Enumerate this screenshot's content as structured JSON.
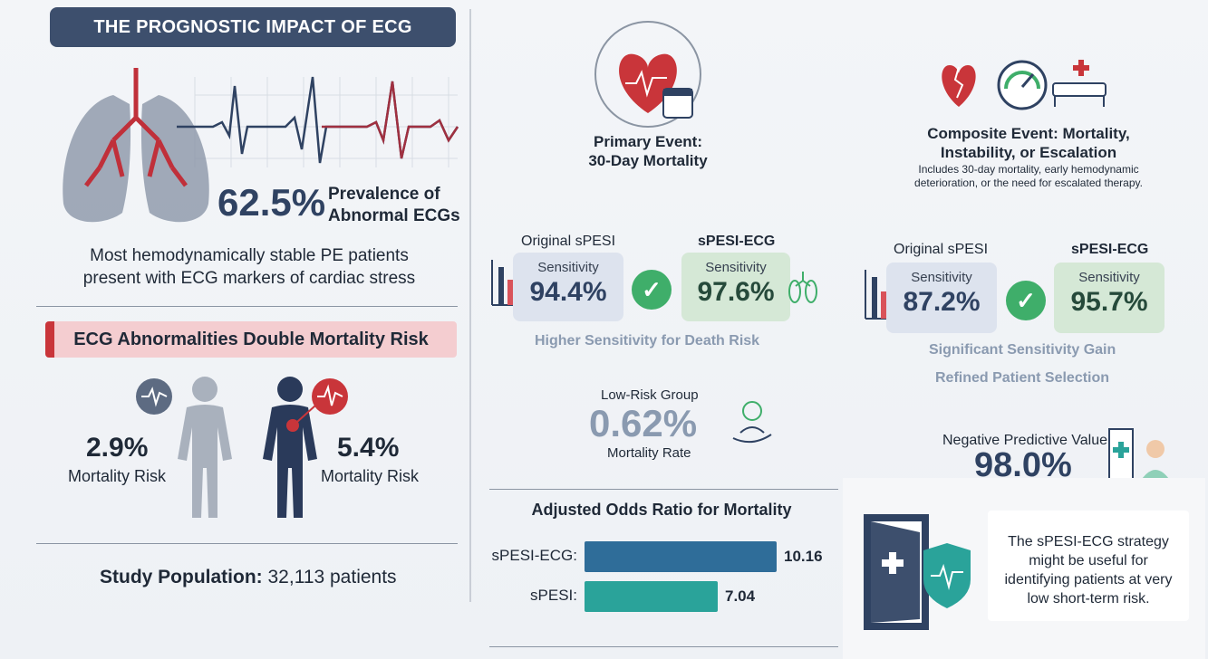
{
  "title": "THE PROGNOSTIC IMPACT OF ECG",
  "prevalence": {
    "value": "62.5%",
    "label_line1": "Prevalence of",
    "label_line2": "Abnormal ECGs"
  },
  "prevalence_note_line1": "Most hemodynamically stable PE patients",
  "prevalence_note_line2": "present with ECG markers of cardiac stress",
  "mortality_banner": "ECG Abnormalities Double Mortality Risk",
  "normal_risk": {
    "value": "2.9%",
    "label": "Mortality Risk"
  },
  "abnormal_risk": {
    "value": "5.4%",
    "label": "Mortality Risk"
  },
  "study_population": {
    "label": "Study Population:",
    "value": "32,113 patients"
  },
  "primary_event": {
    "title_line1": "Primary Event:",
    "title_line2": "30-Day Mortality",
    "original_label": "Original sPESI",
    "new_label": "sPESI-ECG",
    "original_sens_label": "Sensitivity",
    "original_sens_value": "94.4%",
    "new_sens_label": "Sensitivity",
    "new_sens_value": "97.6%",
    "caption": "Higher Sensitivity for Death Risk"
  },
  "low_risk": {
    "title": "Low-Risk Group",
    "value": "0.62%",
    "label": "Mortality Rate"
  },
  "odds_ratio": {
    "title": "Adjusted Odds Ratio for Mortality"
  },
  "chart_data": {
    "type": "bar",
    "title": "Adjusted Odds Ratio for Mortality",
    "categories": [
      "sPESI-ECG:",
      "sPESI:"
    ],
    "values": [
      10.16,
      7.04
    ],
    "value_labels": [
      "10.16",
      "7.04"
    ],
    "colors": [
      "#2f6d99",
      "#2aa39a"
    ],
    "orientation": "horizontal"
  },
  "composite_event": {
    "title_line1": "Composite Event: Mortality,",
    "title_line2": "Instability, or Escalation",
    "desc_line1": "Includes 30-day mortality, early hemodynamic",
    "desc_line2": "deterioration, or the need for escalated therapy.",
    "original_label": "Original sPESI",
    "new_label": "sPESI-ECG",
    "original_sens_label": "Sensitivity",
    "original_sens_value": "87.2%",
    "new_sens_label": "Sensitivity",
    "new_sens_value": "95.7%",
    "caption1": "Significant Sensitivity Gain",
    "caption2": "Refined Patient Selection"
  },
  "npv": {
    "label": "Negative Predictive Value",
    "value": "98.0%"
  },
  "conclusion": {
    "line1": "The sPESI-ECG strategy",
    "line2": "might be useful for",
    "line3": "identifying patients at very",
    "line4": "low short-term risk."
  },
  "colors": {
    "navy": "#2f4262",
    "red": "#c9353a",
    "green": "#3fae6a",
    "teal": "#2aa39a",
    "blue": "#2f6d99"
  }
}
